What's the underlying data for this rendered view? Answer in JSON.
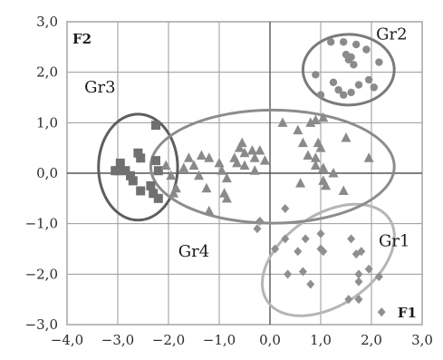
{
  "chart_data": {
    "type": "scatter",
    "xlim": [
      -4.0,
      3.0
    ],
    "ylim": [
      -3.0,
      3.0
    ],
    "xticks": [
      -4,
      -3,
      -2,
      -1,
      0,
      1,
      2,
      3
    ],
    "yticks": [
      -3,
      -2,
      -1,
      0,
      1,
      2,
      3
    ],
    "xtick_labels": [
      "−4,0",
      "−3,0",
      "−2,0",
      "−1,0",
      "0,0",
      "1,0",
      "2,0",
      "3,0"
    ],
    "ytick_labels": [
      "−3,0",
      "−2,0",
      "−1,0",
      "0,0",
      "1,0",
      "2,0",
      "3,0"
    ],
    "grid": true,
    "xlabel": "F1",
    "ylabel": "F2",
    "series": [
      {
        "name": "Gr1",
        "marker": "diamond",
        "color": "#8f8f8f",
        "points": [
          [
            -0.2,
            -0.95
          ],
          [
            -0.25,
            -1.1
          ],
          [
            0.3,
            -0.7
          ],
          [
            0.3,
            -1.3
          ],
          [
            0.7,
            -1.3
          ],
          [
            0.1,
            -1.5
          ],
          [
            0.55,
            -1.55
          ],
          [
            1.0,
            -1.2
          ],
          [
            1.0,
            -1.5
          ],
          [
            1.05,
            -1.55
          ],
          [
            1.6,
            -1.3
          ],
          [
            1.7,
            -1.6
          ],
          [
            1.8,
            -1.55
          ],
          [
            1.75,
            -2.0
          ],
          [
            1.75,
            -2.15
          ],
          [
            1.95,
            -1.9
          ],
          [
            2.15,
            -2.05
          ],
          [
            1.55,
            -2.5
          ],
          [
            1.75,
            -2.5
          ],
          [
            0.8,
            -2.2
          ],
          [
            0.65,
            -1.95
          ],
          [
            0.35,
            -2.0
          ],
          [
            2.2,
            -2.75
          ]
        ]
      },
      {
        "name": "Gr2",
        "marker": "circle",
        "color": "#8a8a8a",
        "points": [
          [
            1.2,
            2.6
          ],
          [
            1.45,
            2.6
          ],
          [
            1.7,
            2.55
          ],
          [
            1.9,
            2.45
          ],
          [
            1.5,
            2.35
          ],
          [
            1.55,
            2.25
          ],
          [
            1.6,
            2.3
          ],
          [
            1.65,
            2.15
          ],
          [
            2.15,
            2.2
          ],
          [
            0.9,
            1.95
          ],
          [
            1.95,
            1.85
          ],
          [
            1.25,
            1.8
          ],
          [
            1.75,
            1.75
          ],
          [
            1.35,
            1.65
          ],
          [
            1.6,
            1.6
          ],
          [
            2.05,
            1.7
          ],
          [
            1.45,
            1.55
          ],
          [
            1.0,
            1.55
          ]
        ]
      },
      {
        "name": "Gr3",
        "marker": "square",
        "color": "#707070",
        "points": [
          [
            -2.25,
            0.95
          ],
          [
            -2.6,
            0.4
          ],
          [
            -2.55,
            0.3
          ],
          [
            -2.25,
            0.25
          ],
          [
            -3.0,
            0.05
          ],
          [
            -2.95,
            0.2
          ],
          [
            -2.85,
            0.05
          ],
          [
            -3.05,
            0.05
          ],
          [
            -2.75,
            -0.05
          ],
          [
            -2.7,
            -0.15
          ],
          [
            -2.2,
            0.05
          ],
          [
            -2.35,
            -0.25
          ],
          [
            -2.55,
            -0.35
          ],
          [
            -2.3,
            -0.4
          ],
          [
            -2.2,
            -0.5
          ]
        ]
      },
      {
        "name": "Gr4",
        "marker": "triangle",
        "color": "#8a8a8a",
        "points": [
          [
            -2.05,
            0.15
          ],
          [
            -1.95,
            -0.05
          ],
          [
            -1.7,
            0.1
          ],
          [
            -1.6,
            0.3
          ],
          [
            -1.5,
            0.15
          ],
          [
            -1.35,
            0.35
          ],
          [
            -1.2,
            0.3
          ],
          [
            -1.4,
            -0.05
          ],
          [
            -1.85,
            -0.3
          ],
          [
            -1.9,
            -0.4
          ],
          [
            -1.25,
            -0.3
          ],
          [
            -1.0,
            0.2
          ],
          [
            -0.95,
            0.05
          ],
          [
            -0.85,
            -0.1
          ],
          [
            -0.9,
            -0.4
          ],
          [
            -0.85,
            -0.5
          ],
          [
            -0.7,
            0.3
          ],
          [
            -0.65,
            0.2
          ],
          [
            -0.55,
            0.6
          ],
          [
            -0.6,
            0.5
          ],
          [
            -0.5,
            0.4
          ],
          [
            -0.35,
            0.45
          ],
          [
            -0.3,
            0.3
          ],
          [
            -0.2,
            0.45
          ],
          [
            -0.1,
            0.25
          ],
          [
            -0.5,
            0.15
          ],
          [
            -0.3,
            0.05
          ],
          [
            -1.2,
            -0.75
          ],
          [
            0.25,
            1.0
          ],
          [
            0.55,
            0.85
          ],
          [
            0.9,
            1.05
          ],
          [
            1.05,
            1.1
          ],
          [
            0.8,
            1.0
          ],
          [
            0.65,
            0.6
          ],
          [
            0.95,
            0.6
          ],
          [
            1.5,
            0.7
          ],
          [
            0.75,
            0.35
          ],
          [
            1.0,
            0.5
          ],
          [
            0.9,
            0.3
          ],
          [
            1.95,
            0.3
          ],
          [
            1.05,
            0.1
          ],
          [
            0.9,
            0.15
          ],
          [
            1.05,
            -0.15
          ],
          [
            1.1,
            -0.25
          ],
          [
            1.45,
            -0.35
          ],
          [
            0.6,
            -0.2
          ],
          [
            1.25,
            0.0
          ]
        ]
      }
    ],
    "ellipses": [
      {
        "label": "Gr1",
        "cx": 1.15,
        "cy": -1.72,
        "rx": 1.45,
        "ry": 0.9,
        "rotation_deg": 34,
        "color": "#b5b5b5",
        "label_at": [
          2.45,
          -1.45
        ]
      },
      {
        "label": "Gr2",
        "cx": 1.55,
        "cy": 2.05,
        "rx": 0.9,
        "ry": 0.7,
        "rotation_deg": 0,
        "color": "#7a7a7a",
        "label_at": [
          2.4,
          2.65
        ]
      },
      {
        "label": "Gr3",
        "cx": -2.6,
        "cy": 0.12,
        "rx": 0.78,
        "ry": 1.05,
        "rotation_deg": 0,
        "color": "#5e5e5e",
        "label_at": [
          -3.35,
          1.6
        ]
      },
      {
        "label": "Gr4",
        "cx": 0.05,
        "cy": 0.13,
        "rx": 2.4,
        "ry": 1.12,
        "rotation_deg": 0,
        "color": "#8c8c8c",
        "label_at": [
          -1.5,
          -1.65
        ]
      }
    ]
  }
}
